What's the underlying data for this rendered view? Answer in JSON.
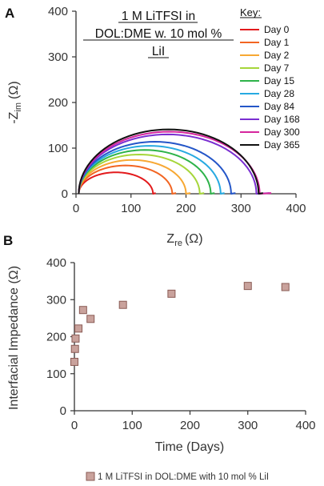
{
  "chart_data": [
    {
      "panel": "A",
      "type": "line",
      "title_lines": [
        "1 M LiTFSI in",
        "DOL:DME w. 10 mol %",
        "LiI"
      ],
      "xlabel": "Z",
      "xlabel_sub": "re",
      "xlabel_unit": "(Ω)",
      "ylabel": "-Z",
      "ylabel_sub": "im",
      "ylabel_unit": "(Ω)",
      "xlim": [
        0,
        400
      ],
      "ylim": [
        0,
        400
      ],
      "xticks": [
        "0",
        "100",
        "200",
        "300",
        "400"
      ],
      "yticks": [
        "0",
        "100",
        "200",
        "300",
        "400"
      ],
      "legend_title": "Key:",
      "legend_position": "top-right",
      "series": [
        {
          "name": "Day 0",
          "color": "#e31a1c",
          "x_start": 5,
          "x_end": 140,
          "tail_end": 145,
          "peak": 47
        },
        {
          "name": "Day 1",
          "color": "#f26522",
          "x_start": 5,
          "x_end": 175,
          "tail_end": 182,
          "peak": 62
        },
        {
          "name": "Day 2",
          "color": "#f7a833",
          "x_start": 5,
          "x_end": 200,
          "tail_end": 208,
          "peak": 74
        },
        {
          "name": "Day 7",
          "color": "#a6d63a",
          "x_start": 5,
          "x_end": 225,
          "tail_end": 233,
          "peak": 86
        },
        {
          "name": "Day 15",
          "color": "#2eb34a",
          "x_start": 5,
          "x_end": 245,
          "tail_end": 252,
          "peak": 96
        },
        {
          "name": "Day 28",
          "color": "#27aae1",
          "x_start": 5,
          "x_end": 263,
          "tail_end": 270,
          "peak": 105
        },
        {
          "name": "Day 84",
          "color": "#2456c8",
          "x_start": 5,
          "x_end": 282,
          "tail_end": 290,
          "peak": 114
        },
        {
          "name": "Day 168",
          "color": "#7a2fd1",
          "x_start": 5,
          "x_end": 328,
          "tail_end": 352,
          "peak": 130
        },
        {
          "name": "Day 300",
          "color": "#d6269d",
          "x_start": 5,
          "x_end": 334,
          "tail_end": 355,
          "peak": 136
        },
        {
          "name": "Day 365",
          "color": "#111111",
          "x_start": 5,
          "x_end": 332,
          "tail_end": 340,
          "peak": 141
        }
      ]
    },
    {
      "panel": "B",
      "type": "scatter",
      "xlabel": "Time (Days)",
      "ylabel": "Interfacial Impedance (Ω)",
      "xlim": [
        0,
        400
      ],
      "ylim": [
        0,
        400
      ],
      "xticks": [
        "0",
        "100",
        "200",
        "300",
        "400"
      ],
      "yticks": [
        "0",
        "100",
        "200",
        "300",
        "400"
      ],
      "legend_position": "bottom",
      "marker_color": "#c9a29c",
      "marker_edge": "#8a5b55",
      "series": [
        {
          "name": "1 M LiTFSI in DOL:DME with 10 mol % LiI",
          "x": [
            0,
            1,
            2,
            7,
            15,
            28,
            84,
            168,
            300,
            365
          ],
          "y": [
            132,
            167,
            195,
            222,
            272,
            248,
            286,
            316,
            337,
            334
          ]
        }
      ]
    }
  ]
}
